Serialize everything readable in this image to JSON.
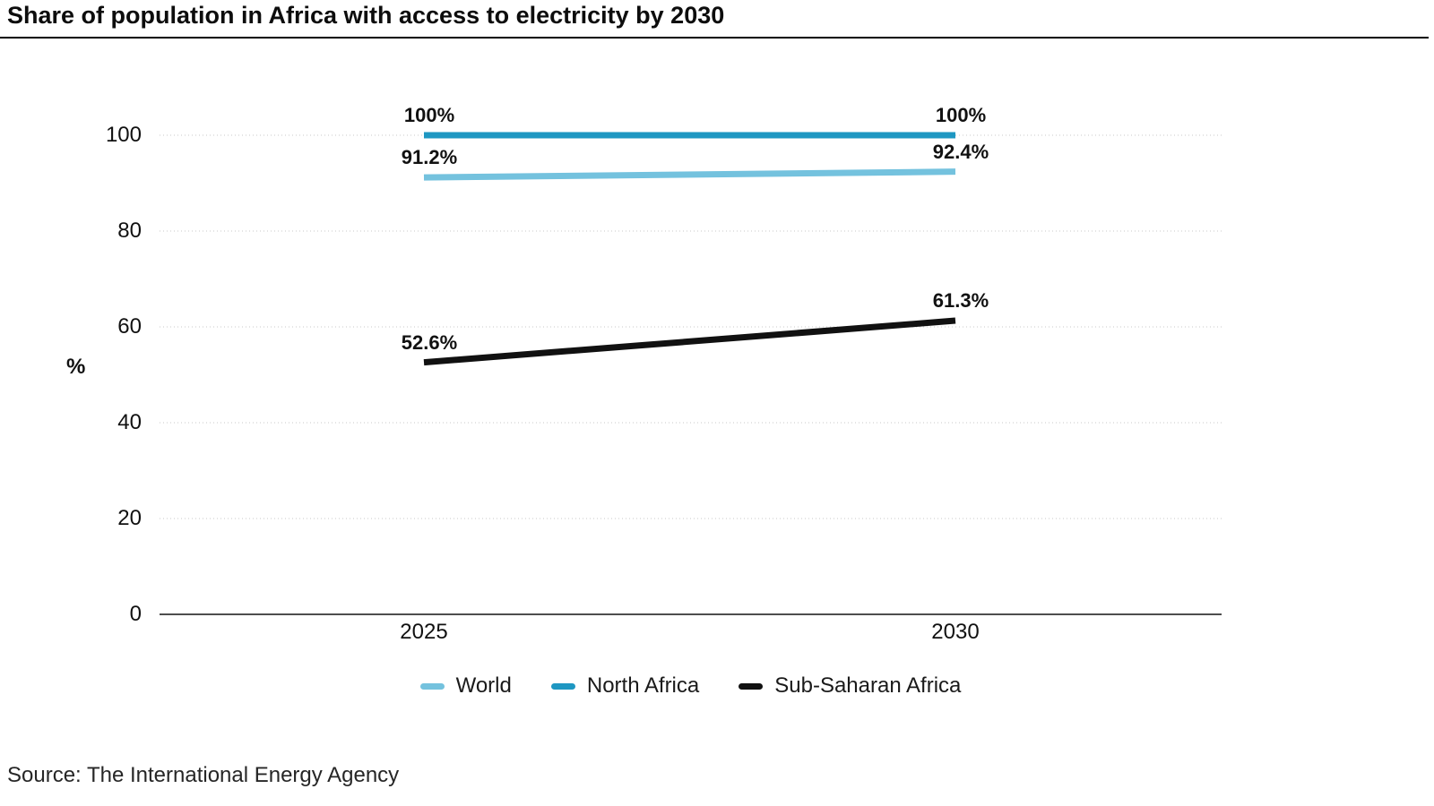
{
  "title": "Share of population in Africa with access to electricity by 2030",
  "source": "Source: The International Energy Agency",
  "colors": {
    "world_line": "#74c2de",
    "north_africa_line": "#1e97c2",
    "sub_saharan_line": "#111111",
    "gridline": "#c9c9c9",
    "axis_line": "#4d4d4d",
    "title_rule": "#000000"
  },
  "chart_data": {
    "type": "line",
    "x": [
      "2025",
      "2030"
    ],
    "series": [
      {
        "name": "World",
        "values": [
          91.2,
          92.4
        ],
        "labels": [
          "91.2%",
          "92.4%"
        ],
        "color": "#74c2de"
      },
      {
        "name": "North Africa",
        "values": [
          100,
          100
        ],
        "labels": [
          "100%",
          "100%"
        ],
        "color": "#1e97c2"
      },
      {
        "name": "Sub-Saharan Africa",
        "values": [
          52.6,
          61.3
        ],
        "labels": [
          "52.6%",
          "61.3%"
        ],
        "color": "#111111"
      }
    ],
    "title": "Share of population in Africa with access to electricity by 2030",
    "xlabel": "",
    "ylabel": "%",
    "yticks": [
      0,
      20,
      40,
      60,
      80,
      100
    ],
    "ylim": [
      0,
      100
    ],
    "grid": "horizontal-dotted",
    "legend_position": "bottom"
  }
}
